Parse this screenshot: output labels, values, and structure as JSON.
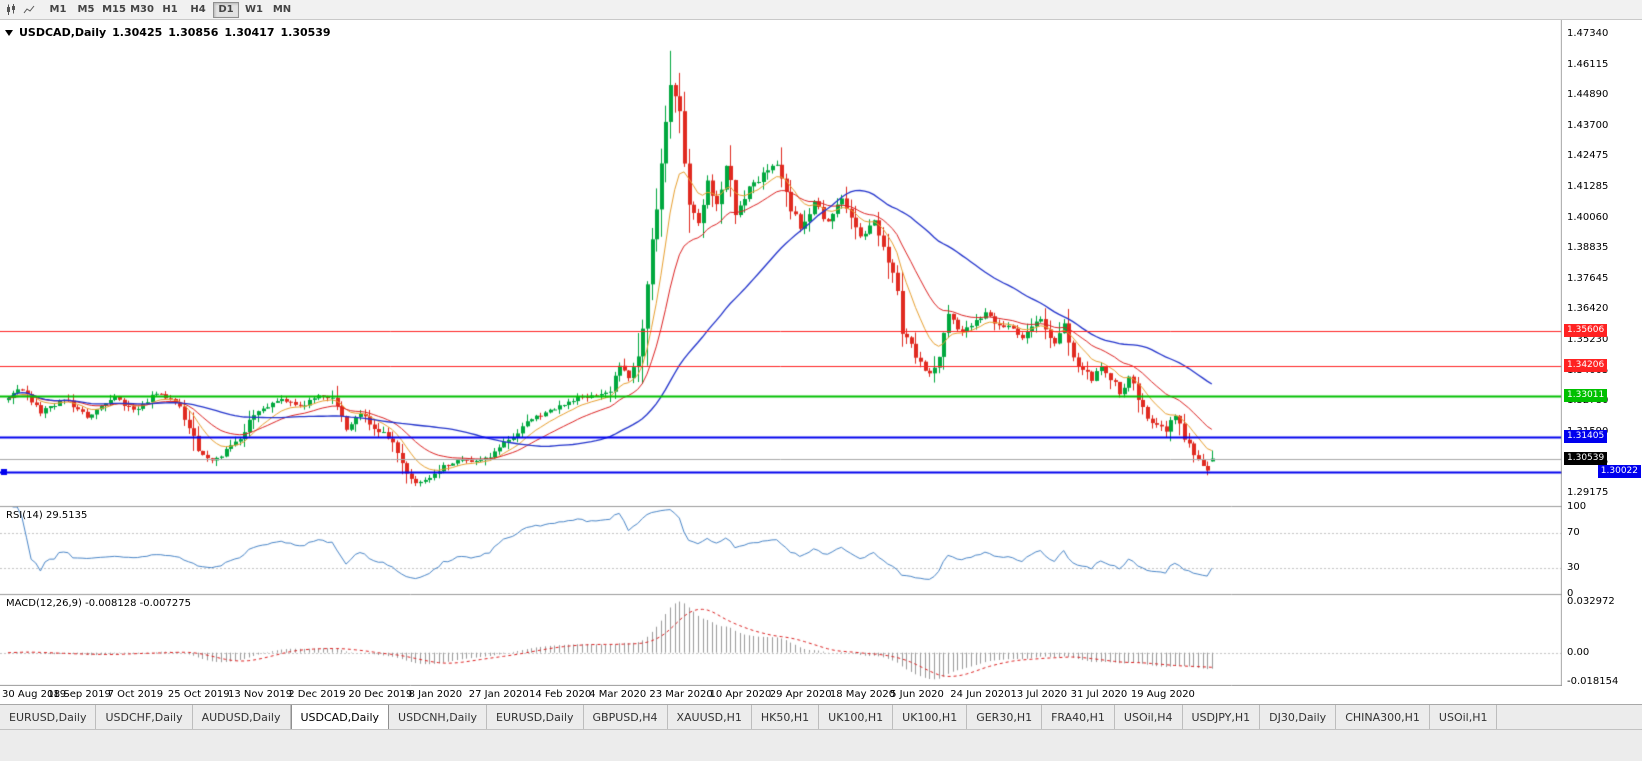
{
  "toolbar": {
    "icons": [
      {
        "name": "candlestick-chart-icon"
      },
      {
        "name": "line-chart-icon"
      }
    ],
    "timeframes": [
      "M1",
      "M5",
      "M15",
      "M30",
      "H1",
      "H4",
      "D1",
      "W1",
      "MN"
    ],
    "active_timeframe": "D1"
  },
  "chart_data": {
    "type": "candlestick",
    "symbol": "USDCAD",
    "timeframe": "Daily",
    "title": "USDCAD,Daily",
    "ohlc_readout": {
      "open": "1.30425",
      "high": "1.30856",
      "low": "1.30417",
      "close": "1.30539"
    },
    "price_axis_ticks": [
      "1.47340",
      "1.46115",
      "1.44890",
      "1.43700",
      "1.42475",
      "1.41285",
      "1.40060",
      "1.38835",
      "1.37645",
      "1.36420",
      "1.35230",
      "1.34005",
      "1.32780",
      "1.31590",
      "1.30365",
      "1.29175"
    ],
    "date_axis_labels": [
      "30 Aug 2019",
      "18 Sep 2019",
      "7 Oct 2019",
      "25 Oct 2019",
      "13 Nov 2019",
      "2 Dec 2019",
      "20 Dec 2019",
      "8 Jan 2020",
      "27 Jan 2020",
      "14 Feb 2020",
      "4 Mar 2020",
      "23 Mar 2020",
      "10 Apr 2020",
      "29 Apr 2020",
      "18 May 2020",
      "5 Jun 2020",
      "24 Jun 2020",
      "13 Jul 2020",
      "31 Jul 2020",
      "19 Aug 2020"
    ],
    "candle_count": 261,
    "price_path": [
      [
        0,
        1.3295
      ],
      [
        3,
        1.333
      ],
      [
        7,
        1.324
      ],
      [
        12,
        1.3288
      ],
      [
        17,
        1.3215
      ],
      [
        23,
        1.3292
      ],
      [
        27,
        1.3248
      ],
      [
        32,
        1.331
      ],
      [
        36,
        1.3282
      ],
      [
        39,
        1.318
      ],
      [
        41,
        1.307
      ],
      [
        44,
        1.3048
      ],
      [
        48,
        1.3095
      ],
      [
        54,
        1.3245
      ],
      [
        59,
        1.329
      ],
      [
        63,
        1.3262
      ],
      [
        67,
        1.33
      ],
      [
        70,
        1.3288
      ],
      [
        73,
        1.317
      ],
      [
        76,
        1.3232
      ],
      [
        80,
        1.3165
      ],
      [
        83,
        1.312
      ],
      [
        86,
        1.2985
      ],
      [
        88,
        1.2958
      ],
      [
        91,
        1.2972
      ],
      [
        93,
        1.301
      ],
      [
        97,
        1.3052
      ],
      [
        102,
        1.3042
      ],
      [
        106,
        1.309
      ],
      [
        112,
        1.32
      ],
      [
        116,
        1.3238
      ],
      [
        119,
        1.3258
      ],
      [
        123,
        1.3298
      ],
      [
        127,
        1.3302
      ],
      [
        130,
        1.333
      ],
      [
        132,
        1.342
      ],
      [
        134,
        1.3372
      ],
      [
        136,
        1.343
      ],
      [
        138,
        1.373
      ],
      [
        140,
        1.402
      ],
      [
        142,
        1.433
      ],
      [
        143,
        1.456
      ],
      [
        144,
        1.448
      ],
      [
        145,
        1.444
      ],
      [
        147,
        1.408
      ],
      [
        149,
        1.399
      ],
      [
        151,
        1.415
      ],
      [
        153,
        1.406
      ],
      [
        155,
        1.421
      ],
      [
        157,
        1.403
      ],
      [
        160,
        1.412
      ],
      [
        163,
        1.418
      ],
      [
        166,
        1.423
      ],
      [
        168,
        1.409
      ],
      [
        171,
        1.3962
      ],
      [
        174,
        1.4068
      ],
      [
        177,
        1.3988
      ],
      [
        180,
        1.4088
      ],
      [
        184,
        1.3932
      ],
      [
        187,
        1.3988
      ],
      [
        189,
        1.3902
      ],
      [
        191,
        1.3782
      ],
      [
        193,
        1.3572
      ],
      [
        195,
        1.3502
      ],
      [
        197,
        1.3425
      ],
      [
        199,
        1.3392
      ],
      [
        201,
        1.347
      ],
      [
        203,
        1.3618
      ],
      [
        206,
        1.3552
      ],
      [
        209,
        1.3605
      ],
      [
        211,
        1.3628
      ],
      [
        214,
        1.3578
      ],
      [
        216,
        1.3572
      ],
      [
        219,
        1.3532
      ],
      [
        223,
        1.3612
      ],
      [
        226,
        1.3512
      ],
      [
        228,
        1.3578
      ],
      [
        230,
        1.3442
      ],
      [
        232,
        1.3412
      ],
      [
        234,
        1.3362
      ],
      [
        236,
        1.3412
      ],
      [
        238,
        1.3378
      ],
      [
        240,
        1.3312
      ],
      [
        242,
        1.3382
      ],
      [
        244,
        1.3302
      ],
      [
        246,
        1.3222
      ],
      [
        248,
        1.3188
      ],
      [
        250,
        1.3168
      ],
      [
        252,
        1.3228
      ],
      [
        254,
        1.3132
      ],
      [
        256,
        1.3072
      ],
      [
        258,
        1.3032
      ],
      [
        259,
        1.2999
      ],
      [
        260,
        1.30539
      ]
    ],
    "extremes": [
      {
        "index": 143,
        "high": 1.4668
      },
      {
        "index": 88,
        "low": 1.2952
      },
      {
        "index": 259,
        "low": 1.2994
      }
    ],
    "colors": {
      "up": "#00a83e",
      "down": "#e02a20",
      "ma_fast": "#e8a030",
      "ma_mid": "#dd2222",
      "ma_slow": "#2233cc",
      "rsi": "#4a86c8",
      "macd_hist": "#9a9a9a",
      "macd_signal": "#dd2222"
    },
    "horizontal_lines": [
      {
        "label": "1.35606",
        "value": 1.35606,
        "color": "#ff2222",
        "width": 1
      },
      {
        "label": "1.34206",
        "value": 1.34206,
        "color": "#ff2222",
        "width": 1
      },
      {
        "label": "1.33011",
        "value": 1.33011,
        "color": "#00c000",
        "width": 2
      },
      {
        "label": "1.31405",
        "value": 1.31405,
        "color": "#0000ee",
        "width": 2
      },
      {
        "label": "1.30022",
        "value": 1.30022,
        "color": "#0000ee",
        "width": 2,
        "tag_at_right_edge": true
      }
    ],
    "current_price": {
      "label": "1.30539",
      "value": 1.30539,
      "tag_bg": "#000000"
    },
    "indicators": [
      {
        "name": "RSI",
        "label": "RSI(14) 29.5135",
        "period": 14,
        "levels": [
          70,
          30
        ],
        "axis_labels": [
          {
            "label": "100",
            "value": 100
          },
          {
            "label": "70",
            "value": 70
          },
          {
            "label": "30",
            "value": 30
          },
          {
            "label": "0",
            "value": 0
          }
        ]
      },
      {
        "name": "MACD",
        "label": "MACD(12,26,9) -0.008128 -0.007275",
        "params": [
          12,
          26,
          9
        ],
        "axis_labels": [
          {
            "label": "0.032972",
            "value": 0.032972
          },
          {
            "label": "0.00",
            "value": 0
          },
          {
            "label": "-0.018154",
            "value": -0.018154
          }
        ]
      }
    ]
  },
  "tabs": {
    "items": [
      "EURUSD,Daily",
      "USDCHF,Daily",
      "AUDUSD,Daily",
      "USDCAD,Daily",
      "USDCNH,Daily",
      "EURUSD,Daily",
      "GBPUSD,H4",
      "XAUUSD,H1",
      "HK50,H1",
      "UK100,H1",
      "UK100,H1",
      "GER30,H1",
      "FRA40,H1",
      "USOil,H4",
      "USDJPY,H1",
      "DJ30,Daily",
      "CHINA300,H1",
      "USOil,H1"
    ],
    "active_index": 3
  }
}
